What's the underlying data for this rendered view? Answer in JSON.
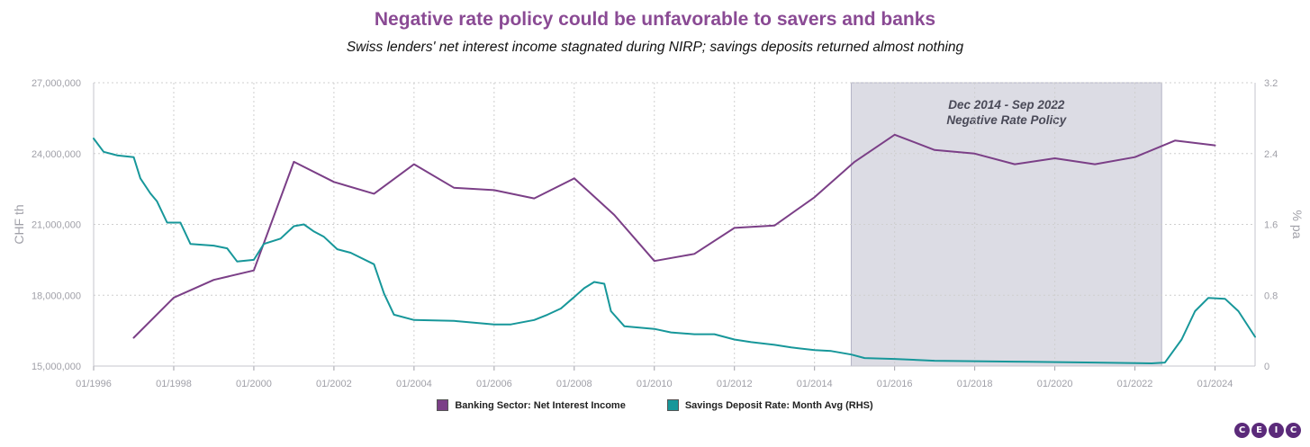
{
  "title": "Negative rate policy could be unfavorable to savers and banks",
  "subtitle": "Swiss lenders' net interest income stagnated during NIRP; savings deposits returned almost nothing",
  "colors": {
    "title": "#8a4a94",
    "nii": "#7b3f87",
    "savings": "#17979a",
    "shade": "#dcdce4",
    "grid": "#cfcfcf",
    "axis": "#a0a0a8"
  },
  "chart_data": {
    "type": "line",
    "x_domain": [
      "1996-01",
      "2025-01"
    ],
    "x_ticks": [
      "01/1996",
      "01/1998",
      "01/2000",
      "01/2002",
      "01/2004",
      "01/2006",
      "01/2008",
      "01/2010",
      "01/2012",
      "01/2014",
      "01/2016",
      "01/2018",
      "01/2020",
      "01/2022",
      "01/2024"
    ],
    "ylabel": "CHF th",
    "y2label": "% pa",
    "ylim": [
      15000000,
      27000000
    ],
    "y_ticks": [
      "15,000,000",
      "18,000,000",
      "21,000,000",
      "24,000,000",
      "27,000,000"
    ],
    "y2lim": [
      0,
      3.2
    ],
    "y2_ticks": [
      "0",
      "0.8",
      "1.6",
      "2.4",
      "3.2"
    ],
    "grid": true,
    "legend_position": "bottom-center",
    "annotation": {
      "x_start": "2014-12",
      "x_end": "2022-09",
      "lines": [
        "Dec 2014 - Sep 2022",
        "Negative Rate Policy"
      ]
    },
    "series": [
      {
        "name": "Banking Sector: Net Interest Income",
        "axis": "left",
        "color": "#7b3f87",
        "x": [
          "1997-01",
          "1998-01",
          "1999-01",
          "2000-01",
          "2001-01",
          "2002-01",
          "2003-01",
          "2004-01",
          "2005-01",
          "2006-01",
          "2007-01",
          "2008-01",
          "2009-01",
          "2010-01",
          "2011-01",
          "2012-01",
          "2013-01",
          "2014-01",
          "2015-01",
          "2016-01",
          "2017-01",
          "2018-01",
          "2019-01",
          "2020-01",
          "2021-01",
          "2022-01",
          "2023-01",
          "2024-01"
        ],
        "values": [
          16200000,
          17900000,
          18650000,
          19050000,
          23650000,
          22800000,
          22300000,
          23550000,
          22550000,
          22450000,
          22100000,
          22950000,
          21400000,
          19450000,
          19750000,
          20850000,
          20950000,
          22150000,
          23650000,
          24800000,
          24150000,
          24000000,
          23550000,
          23800000,
          23550000,
          23850000,
          24550000,
          24350000
        ]
      },
      {
        "name": "Savings Deposit Rate: Month Avg (RHS)",
        "axis": "right",
        "color": "#17979a",
        "x": [
          "1996-01",
          "1996-04",
          "1996-08",
          "1997-01",
          "1997-03",
          "1997-06",
          "1997-08",
          "1997-11",
          "1998-03",
          "1998-06",
          "1999-01",
          "1999-05",
          "1999-08",
          "2000-01",
          "2000-04",
          "2000-09",
          "2001-01",
          "2001-04",
          "2001-07",
          "2001-10",
          "2002-02",
          "2002-06",
          "2003-01",
          "2003-04",
          "2003-07",
          "2004-01",
          "2005-01",
          "2006-01",
          "2006-06",
          "2007-01",
          "2007-05",
          "2007-09",
          "2008-01",
          "2008-04",
          "2008-07",
          "2008-10",
          "2008-12",
          "2009-04",
          "2009-07",
          "2010-01",
          "2010-06",
          "2011-01",
          "2011-07",
          "2012-01",
          "2012-06",
          "2013-01",
          "2013-06",
          "2014-01",
          "2014-06",
          "2014-12",
          "2015-04",
          "2016-01",
          "2017-01",
          "2019-01",
          "2021-01",
          "2022-06",
          "2022-10",
          "2023-03",
          "2023-07",
          "2023-11",
          "2024-04",
          "2024-08",
          "2025-01"
        ],
        "values": [
          2.57,
          2.42,
          2.38,
          2.36,
          2.12,
          1.95,
          1.86,
          1.62,
          1.62,
          1.38,
          1.36,
          1.33,
          1.18,
          1.2,
          1.38,
          1.44,
          1.58,
          1.6,
          1.52,
          1.46,
          1.32,
          1.28,
          1.15,
          0.82,
          0.58,
          0.52,
          0.51,
          0.47,
          0.47,
          0.52,
          0.58,
          0.65,
          0.78,
          0.88,
          0.95,
          0.93,
          0.62,
          0.45,
          0.44,
          0.42,
          0.38,
          0.36,
          0.36,
          0.3,
          0.27,
          0.24,
          0.21,
          0.18,
          0.17,
          0.13,
          0.09,
          0.08,
          0.06,
          0.05,
          0.04,
          0.03,
          0.04,
          0.3,
          0.62,
          0.77,
          0.76,
          0.62,
          0.33
        ]
      }
    ]
  },
  "logo": {
    "letters": [
      "C",
      "E",
      "I",
      "C"
    ]
  }
}
